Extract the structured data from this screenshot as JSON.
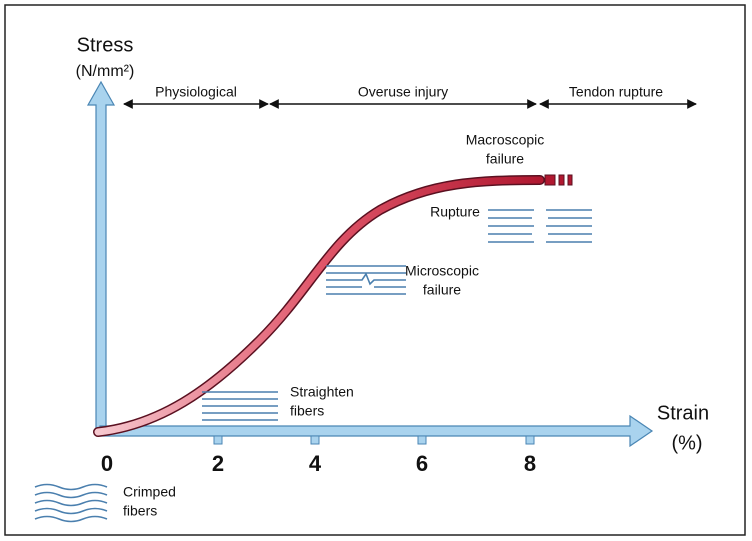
{
  "axes": {
    "y_label": "Stress",
    "y_unit": "(N/mm²)",
    "x_label": "Strain",
    "x_unit": "(%)",
    "x_ticks": [
      "0",
      "2",
      "4",
      "6",
      "8"
    ]
  },
  "regions": [
    "Physiological",
    "Overuse injury",
    "Tendon rupture"
  ],
  "annotations": {
    "macroscopic": [
      "Macroscopic",
      "failure"
    ],
    "rupture": "Rupture",
    "microscopic": [
      "Microscopic",
      "failure"
    ],
    "straighten": [
      "Straighten",
      "fibers"
    ],
    "crimped": [
      "Crimped",
      "fibers"
    ]
  }
}
